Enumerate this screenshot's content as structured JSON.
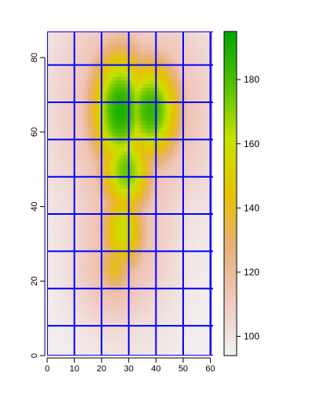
{
  "chart_data": {
    "type": "heatmap",
    "title": "",
    "xlabel": "",
    "ylabel": "",
    "xlim": [
      0,
      61
    ],
    "ylim": [
      0,
      87
    ],
    "x_ticks": [
      "0",
      "10",
      "20",
      "30",
      "40",
      "50",
      "60"
    ],
    "y_ticks": [
      "0",
      "20",
      "40",
      "60",
      "80"
    ],
    "colorbar": {
      "range": [
        94,
        195
      ],
      "ticks": [
        "100",
        "120",
        "140",
        "160",
        "180"
      ],
      "palette": [
        "#f2f2f2",
        "#f0c9c0",
        "#e8b07a",
        "#e6c200",
        "#c8e100",
        "#55c000",
        "#00a600"
      ]
    },
    "grid_lines": {
      "color": "#0000ff",
      "x": [
        0,
        10,
        20,
        30,
        40,
        50,
        60
      ],
      "y": [
        0,
        8,
        18,
        28,
        38,
        48,
        58,
        68,
        78,
        87
      ]
    },
    "hotspots": [
      {
        "x": 27,
        "y": 66,
        "value": 190,
        "sx": 8,
        "sy": 12
      },
      {
        "x": 38,
        "y": 66,
        "value": 185,
        "sx": 8,
        "sy": 10
      },
      {
        "x": 29,
        "y": 50,
        "value": 175,
        "sx": 7,
        "sy": 9
      },
      {
        "x": 28,
        "y": 34,
        "value": 160,
        "sx": 6,
        "sy": 9
      },
      {
        "x": 25,
        "y": 24,
        "value": 140,
        "sx": 5,
        "sy": 6
      }
    ],
    "base_value": 95
  }
}
